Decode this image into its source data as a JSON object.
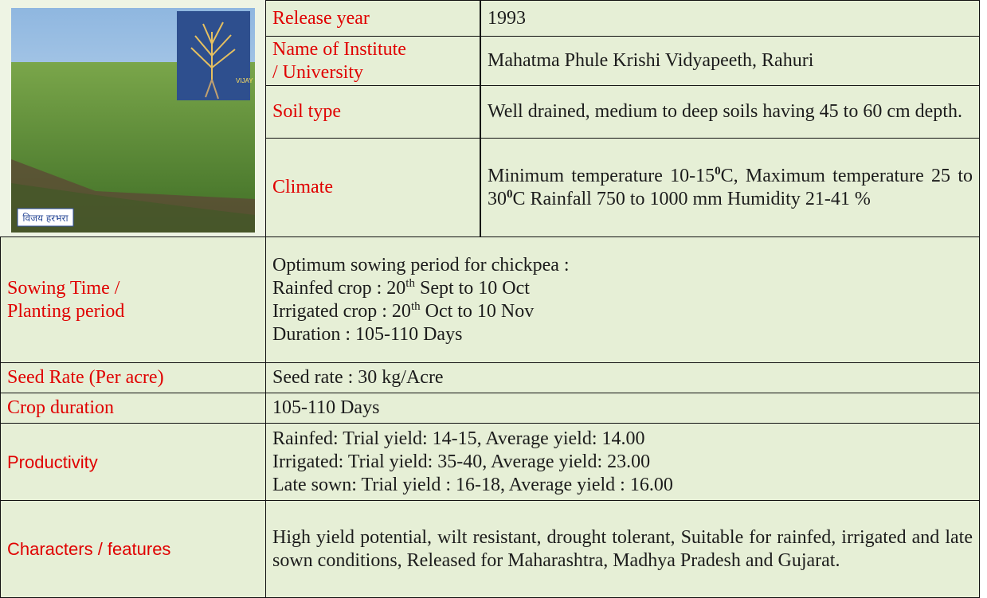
{
  "image": {
    "caption": "विजय हरभरा",
    "inset_label": "VIJAY"
  },
  "rows": [
    {
      "label": [
        "Release year"
      ],
      "value": [
        [
          {
            "text": "1993"
          }
        ]
      ]
    },
    {
      "label": [
        "Name of Institute",
        "/ University"
      ],
      "value": [
        [
          {
            "text": "Mahatma Phule Krishi Vidyapeeth, Rahuri"
          }
        ]
      ]
    },
    {
      "label": [
        "Soil type"
      ],
      "value": [
        [
          {
            "text": "Well drained, medium to deep soils having 45 to 60 cm depth."
          }
        ]
      ]
    },
    {
      "label": [
        "Climate"
      ],
      "value": [
        [
          {
            "text": "Minimum temperature  10-15"
          },
          {
            "sup": "0"
          },
          {
            "text": "C, Maximum temperature  25 to 30"
          },
          {
            "sup": "0"
          },
          {
            "text": "C Rainfall  750 to 1000 mm Humidity 21-41 %"
          }
        ]
      ]
    },
    {
      "label": [
        "Sowing Time  /",
        "Planting  period"
      ],
      "value": [
        [
          {
            "text": "Optimum sowing period for chickpea :"
          }
        ],
        [
          {
            "text": "Rainfed crop  : 20"
          },
          {
            "sup": "th"
          },
          {
            "text": " Sept to 10 Oct"
          }
        ],
        [
          {
            "text": "Irrigated crop : 20"
          },
          {
            "sup": "th"
          },
          {
            "text": " Oct to 10 Nov"
          }
        ],
        [
          {
            "text": "Duration : 105-110 Days"
          }
        ]
      ]
    },
    {
      "label": [
        "Seed Rate  (Per acre)"
      ],
      "value": [
        [
          {
            "text": "Seed rate  :  30  kg/Acre"
          }
        ]
      ]
    },
    {
      "label": [
        "Crop duration"
      ],
      "value": [
        [
          {
            "text": "105-110 Days"
          }
        ]
      ]
    },
    {
      "label": [
        "Productivity"
      ],
      "value": [
        [
          {
            "text": "Rainfed:  Trial yield: 14-15, Average yield: 14.00"
          }
        ],
        [
          {
            "text": "Irrigated:  Trial yield: 35-40, Average yield: 23.00"
          }
        ],
        [
          {
            "text": "Late sown:  Trial yield : 16-18, Average yield : 16.00"
          }
        ]
      ]
    },
    {
      "label": [
        "Characters / features"
      ],
      "value": [
        [
          {
            "text": "High yield potential, wilt resistant, drought tolerant, Suitable for rainfed, irrigated and late sown conditions, Released for Maharashtra, Madhya Pradesh and Gujarat."
          }
        ]
      ]
    }
  ]
}
